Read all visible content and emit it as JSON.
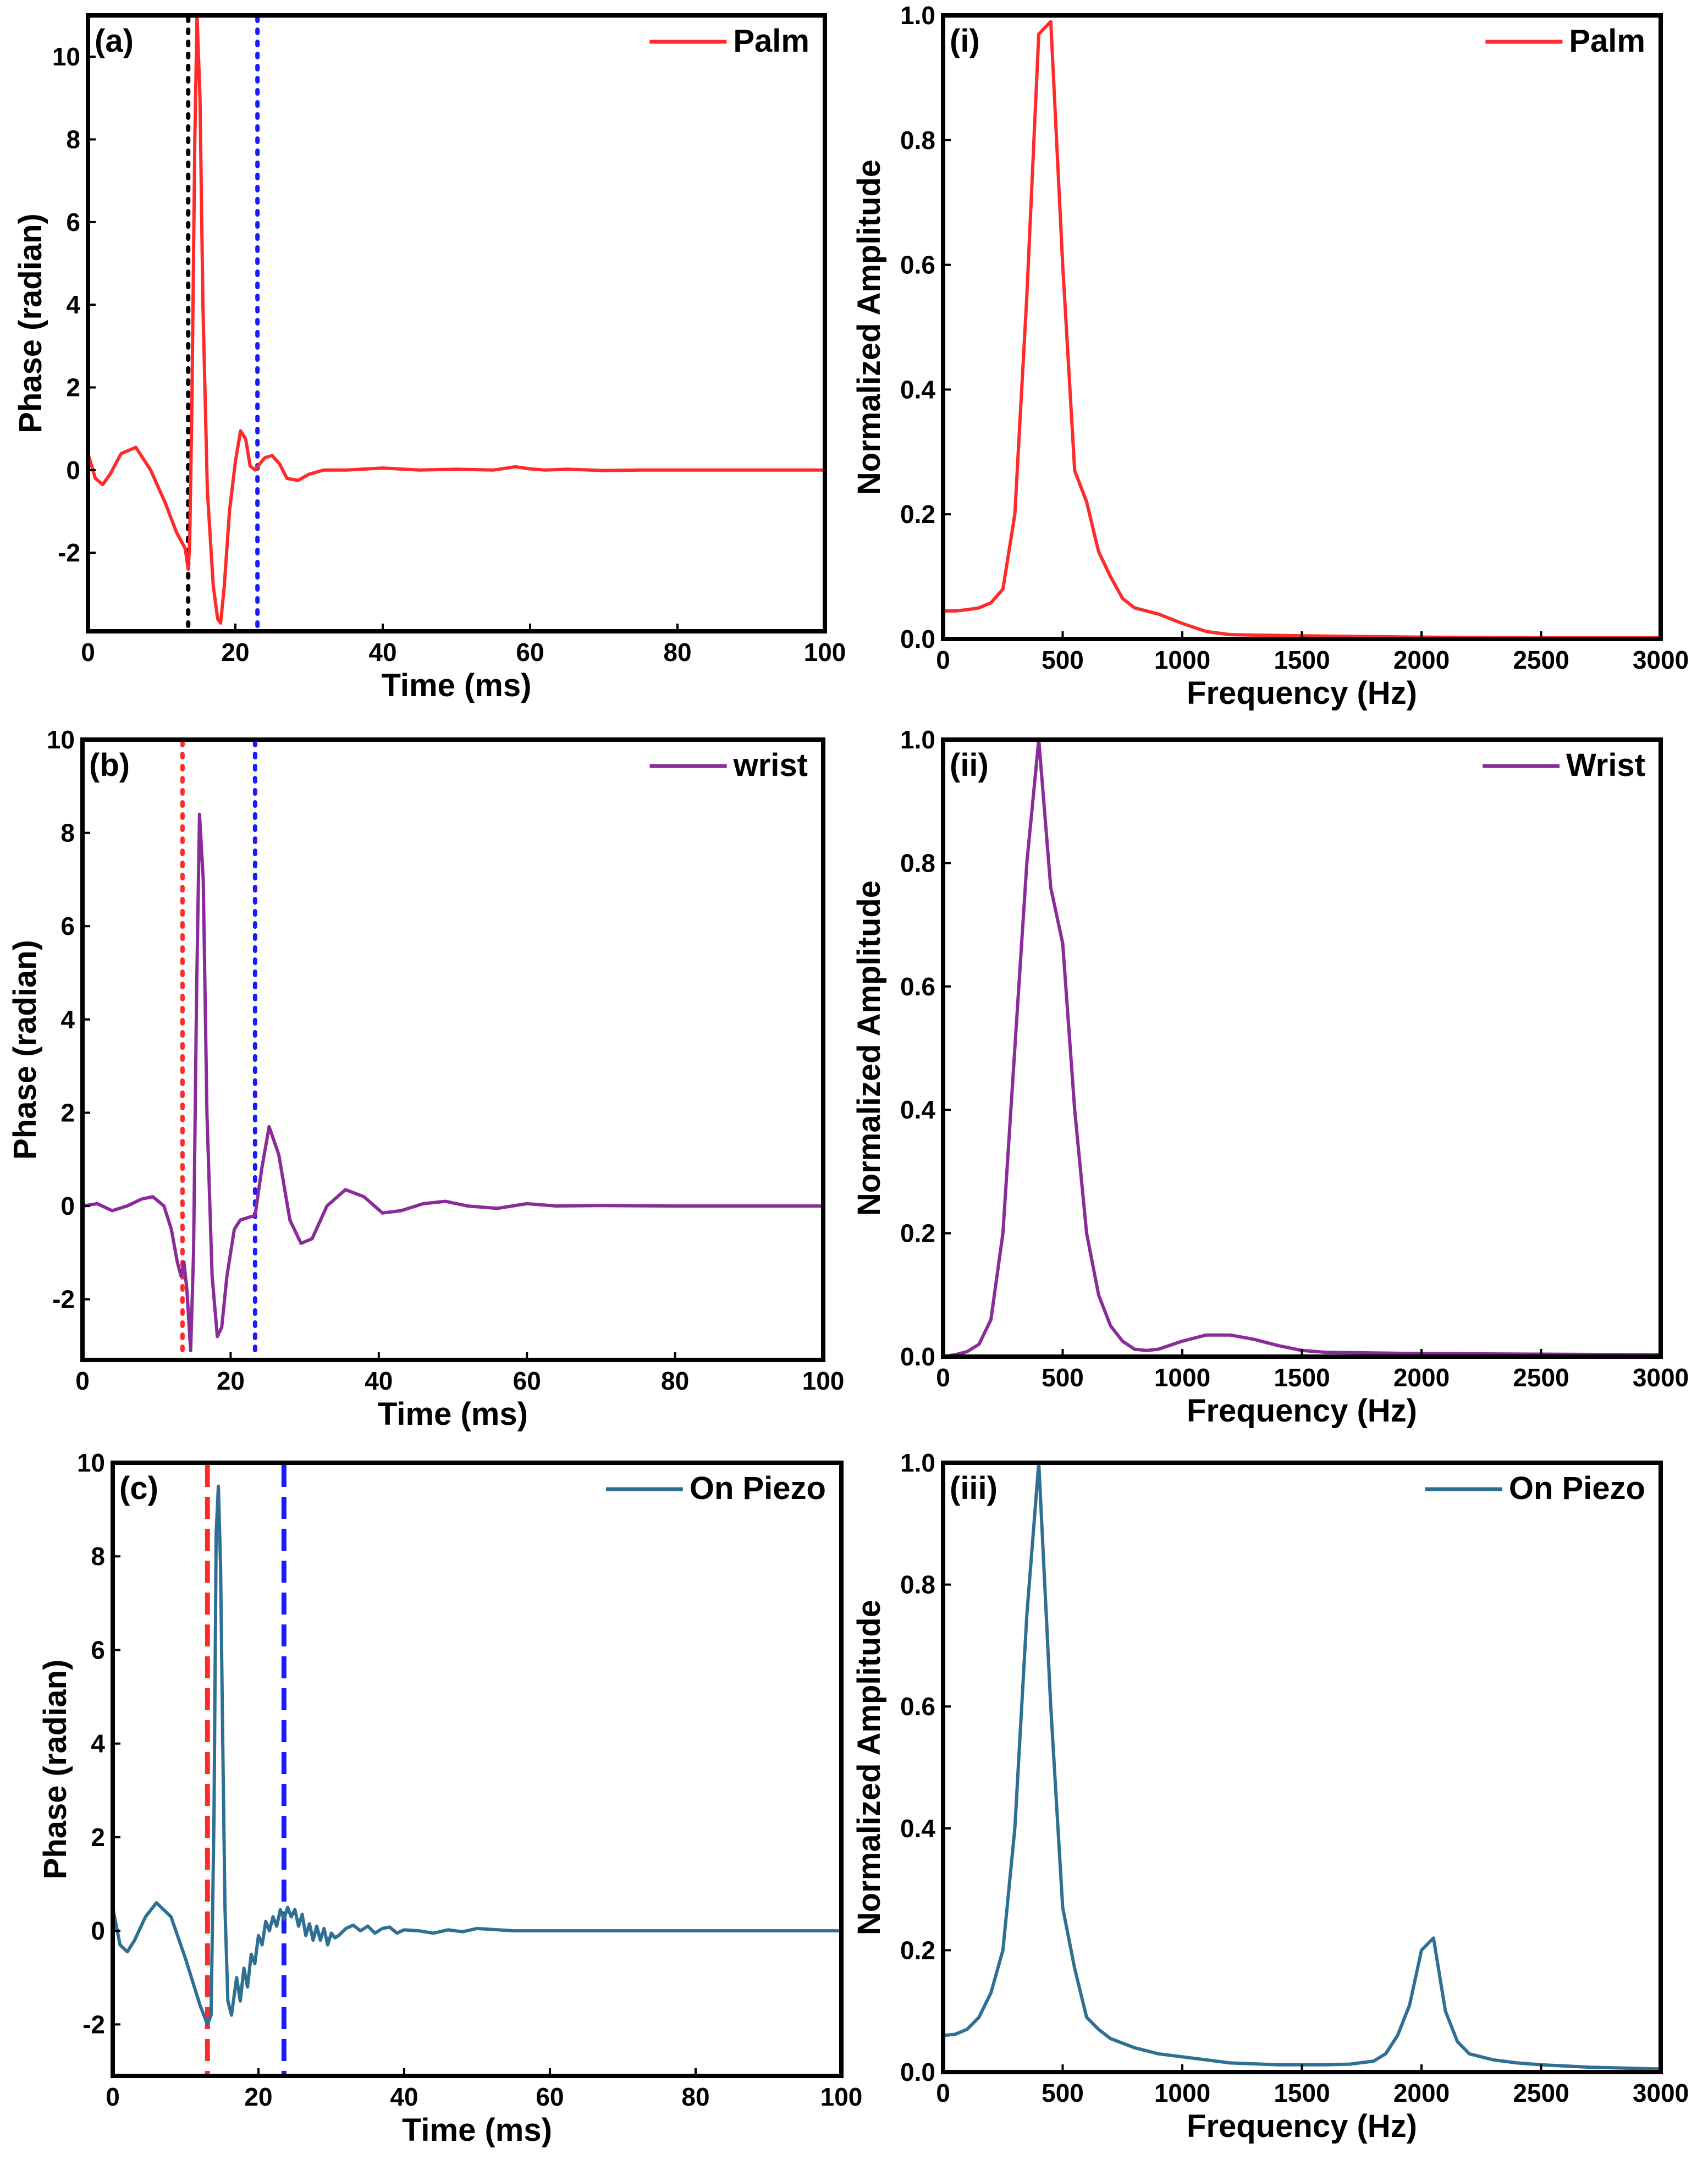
{
  "figure": {
    "colors": {
      "palm": "#ff2a2a",
      "wrist": "#8a2b9a",
      "piezo": "#2e6f93",
      "black_marker": "#000000",
      "red_marker": "#ff2a2a",
      "blue_marker": "#1a1aff"
    }
  },
  "chart_data": [
    {
      "id": "a",
      "type": "line",
      "panel_label": "(a)",
      "legend": "Palm",
      "legend_position": "top-right",
      "color": "#ff2a2a",
      "xlabel": "Time (ms)",
      "ylabel": "Phase (radian)",
      "xlim": [
        0,
        100
      ],
      "ylim": [
        -3.9,
        11
      ],
      "xticks": [
        0,
        20,
        40,
        60,
        80,
        100
      ],
      "yticks": [
        -2,
        0,
        2,
        4,
        6,
        8,
        10
      ],
      "markers": [
        {
          "x": 13.6,
          "color": "#000000",
          "style": "dotted"
        },
        {
          "x": 23.0,
          "color": "#1a1aff",
          "style": "dotted"
        }
      ],
      "series": [
        {
          "name": "Palm",
          "x": [
            0,
            1,
            2,
            3,
            4.5,
            6.5,
            8.5,
            10.5,
            12,
            13.2,
            13.6,
            13.8,
            14.1,
            14.5,
            14.8,
            15.2,
            15.6,
            16.2,
            17,
            17.6,
            18,
            18.5,
            19.2,
            20,
            20.7,
            21.4,
            22,
            22.7,
            23.3,
            24,
            25,
            26,
            27,
            28.5,
            30,
            32,
            35,
            40,
            45,
            50,
            55,
            58,
            60,
            62,
            65,
            70,
            75,
            80,
            85,
            90,
            95,
            100
          ],
          "y": [
            0.4,
            -0.2,
            -0.35,
            -0.1,
            0.4,
            0.55,
            0.0,
            -0.8,
            -1.5,
            -1.9,
            -2.4,
            -1.8,
            1.5,
            8.0,
            11.0,
            9.0,
            4.0,
            -0.5,
            -2.8,
            -3.6,
            -3.7,
            -2.8,
            -1.0,
            0.2,
            0.95,
            0.75,
            0.1,
            0.0,
            0.15,
            0.3,
            0.35,
            0.15,
            -0.2,
            -0.25,
            -0.1,
            0.0,
            0.0,
            0.05,
            0.0,
            0.02,
            0.0,
            0.08,
            0.03,
            0.0,
            0.02,
            -0.01,
            0.0,
            0.0,
            0.0,
            0.0,
            0.0,
            0.0
          ]
        }
      ]
    },
    {
      "id": "i",
      "type": "line",
      "panel_label": "(i)",
      "legend": "Palm",
      "legend_position": "top-right",
      "color": "#ff2a2a",
      "xlabel": "Frequency (Hz)",
      "ylabel": "Normalized Amplitude",
      "xlim": [
        0,
        3000
      ],
      "ylim": [
        0,
        1.0
      ],
      "xticks": [
        0,
        500,
        1000,
        1500,
        2000,
        2500,
        3000
      ],
      "yticks": [
        0.0,
        0.2,
        0.4,
        0.6,
        0.8,
        1.0
      ],
      "series": [
        {
          "name": "Palm",
          "x": [
            0,
            50,
            100,
            150,
            200,
            250,
            300,
            350,
            400,
            450,
            500,
            550,
            600,
            650,
            700,
            750,
            800,
            900,
            1000,
            1100,
            1200,
            1500,
            2000,
            2500,
            3000
          ],
          "y": [
            0.045,
            0.045,
            0.047,
            0.05,
            0.058,
            0.08,
            0.2,
            0.55,
            0.97,
            0.99,
            0.6,
            0.27,
            0.22,
            0.14,
            0.1,
            0.065,
            0.05,
            0.04,
            0.025,
            0.012,
            0.007,
            0.005,
            0.003,
            0.002,
            0.002
          ]
        }
      ]
    },
    {
      "id": "b",
      "type": "line",
      "panel_label": "(b)",
      "legend": "wrist",
      "legend_position": "top-right",
      "color": "#8a2b9a",
      "xlabel": "Time (ms)",
      "ylabel": "Phase (radian)",
      "xlim": [
        0,
        100
      ],
      "ylim": [
        -3.3,
        10
      ],
      "xticks": [
        0,
        20,
        40,
        60,
        80,
        100
      ],
      "yticks": [
        -2,
        0,
        2,
        4,
        6,
        8,
        10
      ],
      "markers": [
        {
          "x": 13.5,
          "color": "#ff2a2a",
          "style": "dotted"
        },
        {
          "x": 23.3,
          "color": "#1a1aff",
          "style": "dotted"
        }
      ],
      "series": [
        {
          "name": "Wrist",
          "x": [
            0,
            2,
            4,
            6,
            8,
            9.5,
            11,
            12,
            12.8,
            13.3,
            13.7,
            14.1,
            14.6,
            15.0,
            15.4,
            15.8,
            16.3,
            16.8,
            17.5,
            18.2,
            18.8,
            19.5,
            20.5,
            21.3,
            22.3,
            23.3,
            24.2,
            25.2,
            26.5,
            28,
            29.5,
            31,
            33,
            35.5,
            38,
            40.5,
            43,
            46,
            49,
            52,
            56,
            60,
            64,
            70,
            80,
            90,
            100
          ],
          "y": [
            0.0,
            0.05,
            -0.1,
            0.0,
            0.15,
            0.2,
            0.0,
            -0.5,
            -1.2,
            -1.5,
            -1.2,
            -1.8,
            -3.1,
            -1.0,
            4.5,
            8.4,
            7.0,
            2.0,
            -1.5,
            -2.8,
            -2.6,
            -1.5,
            -0.5,
            -0.3,
            -0.25,
            -0.2,
            0.8,
            1.7,
            1.1,
            -0.3,
            -0.8,
            -0.7,
            0.0,
            0.35,
            0.2,
            -0.15,
            -0.1,
            0.05,
            0.1,
            0.0,
            -0.05,
            0.05,
            0.0,
            0.01,
            0.0,
            0.0,
            0.0
          ]
        }
      ]
    },
    {
      "id": "ii",
      "type": "line",
      "panel_label": "(ii)",
      "legend": "Wrist",
      "legend_position": "top-right",
      "color": "#8a2b9a",
      "xlabel": "Frequency (Hz)",
      "ylabel": "Normalized Amplitude",
      "xlim": [
        0,
        3000
      ],
      "ylim": [
        0,
        1.0
      ],
      "xticks": [
        0,
        500,
        1000,
        1500,
        2000,
        2500,
        3000
      ],
      "yticks": [
        0.0,
        0.2,
        0.4,
        0.6,
        0.8,
        1.0
      ],
      "series": [
        {
          "name": "Wrist",
          "x": [
            0,
            50,
            100,
            150,
            200,
            250,
            300,
            350,
            400,
            450,
            500,
            550,
            600,
            650,
            700,
            750,
            800,
            850,
            900,
            1000,
            1100,
            1200,
            1300,
            1400,
            1500,
            1600,
            1800,
            2000,
            2500,
            3000
          ],
          "y": [
            0.0,
            0.003,
            0.008,
            0.02,
            0.06,
            0.2,
            0.5,
            0.8,
            1.0,
            0.76,
            0.67,
            0.4,
            0.2,
            0.1,
            0.05,
            0.025,
            0.012,
            0.01,
            0.012,
            0.025,
            0.035,
            0.035,
            0.028,
            0.018,
            0.01,
            0.007,
            0.006,
            0.005,
            0.004,
            0.003
          ]
        }
      ]
    },
    {
      "id": "c",
      "type": "line",
      "panel_label": "(c)",
      "legend": "On Piezo",
      "legend_position": "top-right",
      "color": "#2e6f93",
      "xlabel": "Time (ms)",
      "ylabel": "Phase (radian)",
      "xlim": [
        0,
        100
      ],
      "ylim": [
        -3.1,
        10
      ],
      "xticks": [
        0,
        20,
        40,
        60,
        80,
        100
      ],
      "yticks": [
        -2,
        0,
        2,
        4,
        6,
        8,
        10
      ],
      "markers": [
        {
          "x": 13.0,
          "color": "#ff2a2a",
          "style": "dashed"
        },
        {
          "x": 23.5,
          "color": "#1a1aff",
          "style": "dashed"
        }
      ],
      "series": [
        {
          "name": "On Piezo",
          "x": [
            0,
            1,
            2,
            3,
            4.5,
            6,
            8,
            10,
            12,
            13,
            13.5,
            13.9,
            14.2,
            14.5,
            14.8,
            15.1,
            15.4,
            15.8,
            16.3,
            17,
            17.5,
            18,
            18.5,
            19,
            19.5,
            20,
            20.5,
            21,
            21.5,
            22,
            22.5,
            23,
            23.5,
            24,
            24.5,
            25,
            25.5,
            26,
            26.5,
            27,
            27.5,
            28,
            28.5,
            29,
            29.5,
            30,
            30.5,
            31,
            32,
            33,
            34,
            35,
            36,
            37,
            38,
            39,
            40,
            42,
            44,
            46,
            48,
            50,
            55,
            60,
            70,
            80,
            90,
            100
          ],
          "y": [
            0.5,
            -0.3,
            -0.45,
            -0.2,
            0.3,
            0.6,
            0.3,
            -0.6,
            -1.6,
            -2.0,
            -1.8,
            2.5,
            8.5,
            9.5,
            7.8,
            4.0,
            0.5,
            -1.5,
            -1.8,
            -1.0,
            -1.5,
            -0.8,
            -1.2,
            -0.5,
            -0.7,
            -0.1,
            -0.3,
            0.2,
            0.0,
            0.3,
            0.1,
            0.45,
            0.25,
            0.5,
            0.3,
            0.45,
            0.1,
            0.35,
            -0.1,
            0.15,
            -0.2,
            0.1,
            -0.2,
            0.05,
            -0.3,
            -0.05,
            -0.15,
            -0.1,
            0.05,
            0.12,
            0.0,
            0.1,
            -0.05,
            0.05,
            0.08,
            -0.05,
            0.02,
            0.0,
            -0.05,
            0.02,
            -0.02,
            0.05,
            0.0,
            0.0,
            0.0,
            0.0,
            0.0,
            0.0
          ]
        }
      ]
    },
    {
      "id": "iii",
      "type": "line",
      "panel_label": "(iii)",
      "legend": "On Piezo",
      "legend_position": "top-right",
      "color": "#2e6f93",
      "xlabel": "Frequency (Hz)",
      "ylabel": "Normalized Amplitude",
      "xlim": [
        0,
        3000
      ],
      "ylim": [
        0,
        1.0
      ],
      "xticks": [
        0,
        500,
        1000,
        1500,
        2000,
        2500,
        3000
      ],
      "yticks": [
        0.0,
        0.2,
        0.4,
        0.6,
        0.8,
        1.0
      ],
      "series": [
        {
          "name": "On Piezo",
          "x": [
            0,
            50,
            100,
            150,
            200,
            250,
            300,
            350,
            400,
            450,
            500,
            550,
            600,
            650,
            700,
            800,
            900,
            1000,
            1100,
            1200,
            1400,
            1600,
            1700,
            1800,
            1850,
            1900,
            1950,
            2000,
            2050,
            2100,
            2150,
            2200,
            2300,
            2400,
            2500,
            2700,
            3000
          ],
          "y": [
            0.06,
            0.062,
            0.07,
            0.09,
            0.13,
            0.2,
            0.4,
            0.75,
            1.0,
            0.6,
            0.27,
            0.17,
            0.09,
            0.07,
            0.055,
            0.04,
            0.03,
            0.025,
            0.02,
            0.015,
            0.012,
            0.012,
            0.013,
            0.018,
            0.03,
            0.06,
            0.11,
            0.2,
            0.22,
            0.1,
            0.05,
            0.03,
            0.02,
            0.015,
            0.012,
            0.008,
            0.005
          ]
        }
      ]
    }
  ]
}
